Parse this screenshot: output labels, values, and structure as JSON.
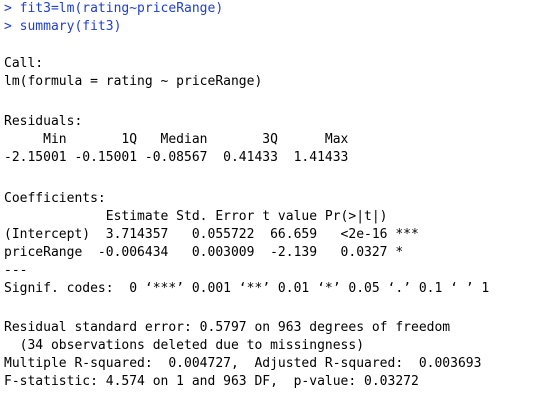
{
  "console": {
    "prompt_symbol": ">",
    "commands": [
      "fit3=lm(rating~priceRange)",
      "summary(fit3)"
    ],
    "output": {
      "call_header": "Call:",
      "call_formula": "lm(formula = rating ~ priceRange)",
      "residuals_header": "Residuals:",
      "residuals_labels": "     Min       1Q   Median       3Q      Max ",
      "residuals_values": "-2.15001 -0.15001 -0.08567  0.41433  1.41433 ",
      "coefficients_header": "Coefficients:",
      "coef_table_header": "             Estimate Std. Error t value Pr(>|t|)    ",
      "coef_row_intercept": "(Intercept)  3.714357   0.055722  66.659   <2e-16 ***",
      "coef_row_pricerange": "priceRange  -0.006434   0.003009  -2.139   0.0327 *  ",
      "separator": "---",
      "signif_codes": "Signif. codes:  0 ‘***’ 0.001 ‘**’ 0.01 ‘*’ 0.05 ‘.’ 0.1 ‘ ’ 1",
      "residual_se": "Residual standard error: 0.5797 on 963 degrees of freedom",
      "missingness_note": "  (34 observations deleted due to missingness)",
      "r_squared": "Multiple R-squared:  0.004727,\tAdjusted R-squared:  0.003693 ",
      "f_statistic": "F-statistic: 4.574 on 1 and 963 DF,  p-value: 0.03272"
    }
  },
  "colors": {
    "input_text": "#1f3fd0",
    "output_text": "#000000",
    "background": "#ffffff"
  }
}
